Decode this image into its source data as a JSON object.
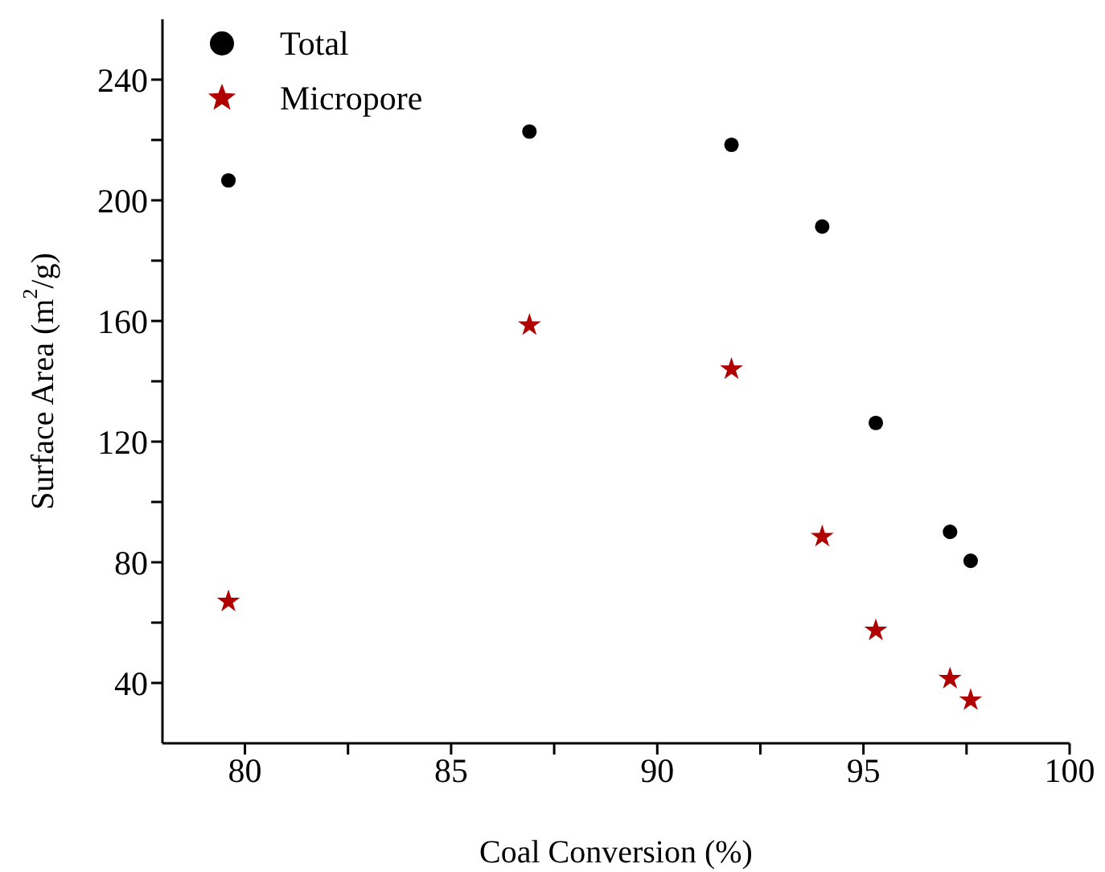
{
  "chart_data": {
    "type": "scatter",
    "xlabel": "Coal Conversion (%)",
    "ylabel": "Surface Area (m$^{2}$/g)",
    "xlim": [
      78,
      100
    ],
    "xticks": [
      80,
      {
        "value": 82.5,
        "label": null
      },
      85,
      {
        "value": 87.5,
        "label": null
      },
      90,
      {
        "value": 92.5,
        "label": null
      },
      95,
      {
        "value": 97.5,
        "label": null
      },
      100
    ],
    "ylim": [
      20,
      260
    ],
    "yticks": [
      40,
      {
        "value": 60,
        "label": null
      },
      80,
      {
        "value": 100,
        "label": null
      },
      120,
      {
        "value": 140,
        "label": null
      },
      160,
      {
        "value": 180,
        "label": null
      },
      200,
      {
        "value": 220,
        "label": null
      },
      240
    ],
    "x": [
      79.6,
      86.9,
      91.8,
      94.0,
      95.3,
      97.1,
      97.6
    ],
    "series": [
      {
        "name": "Total",
        "color": "#000000",
        "marker": "circle",
        "values": [
          206.6,
          222.8,
          218.4,
          191.3,
          126.2,
          90.1,
          80.5
        ]
      },
      {
        "name": "Micropore",
        "color": "#b00000",
        "marker": "star",
        "values": [
          67.0,
          158.6,
          144.0,
          88.5,
          57.4,
          41.4,
          34.3
        ]
      }
    ],
    "legend": "top left",
    "grid": false
  }
}
